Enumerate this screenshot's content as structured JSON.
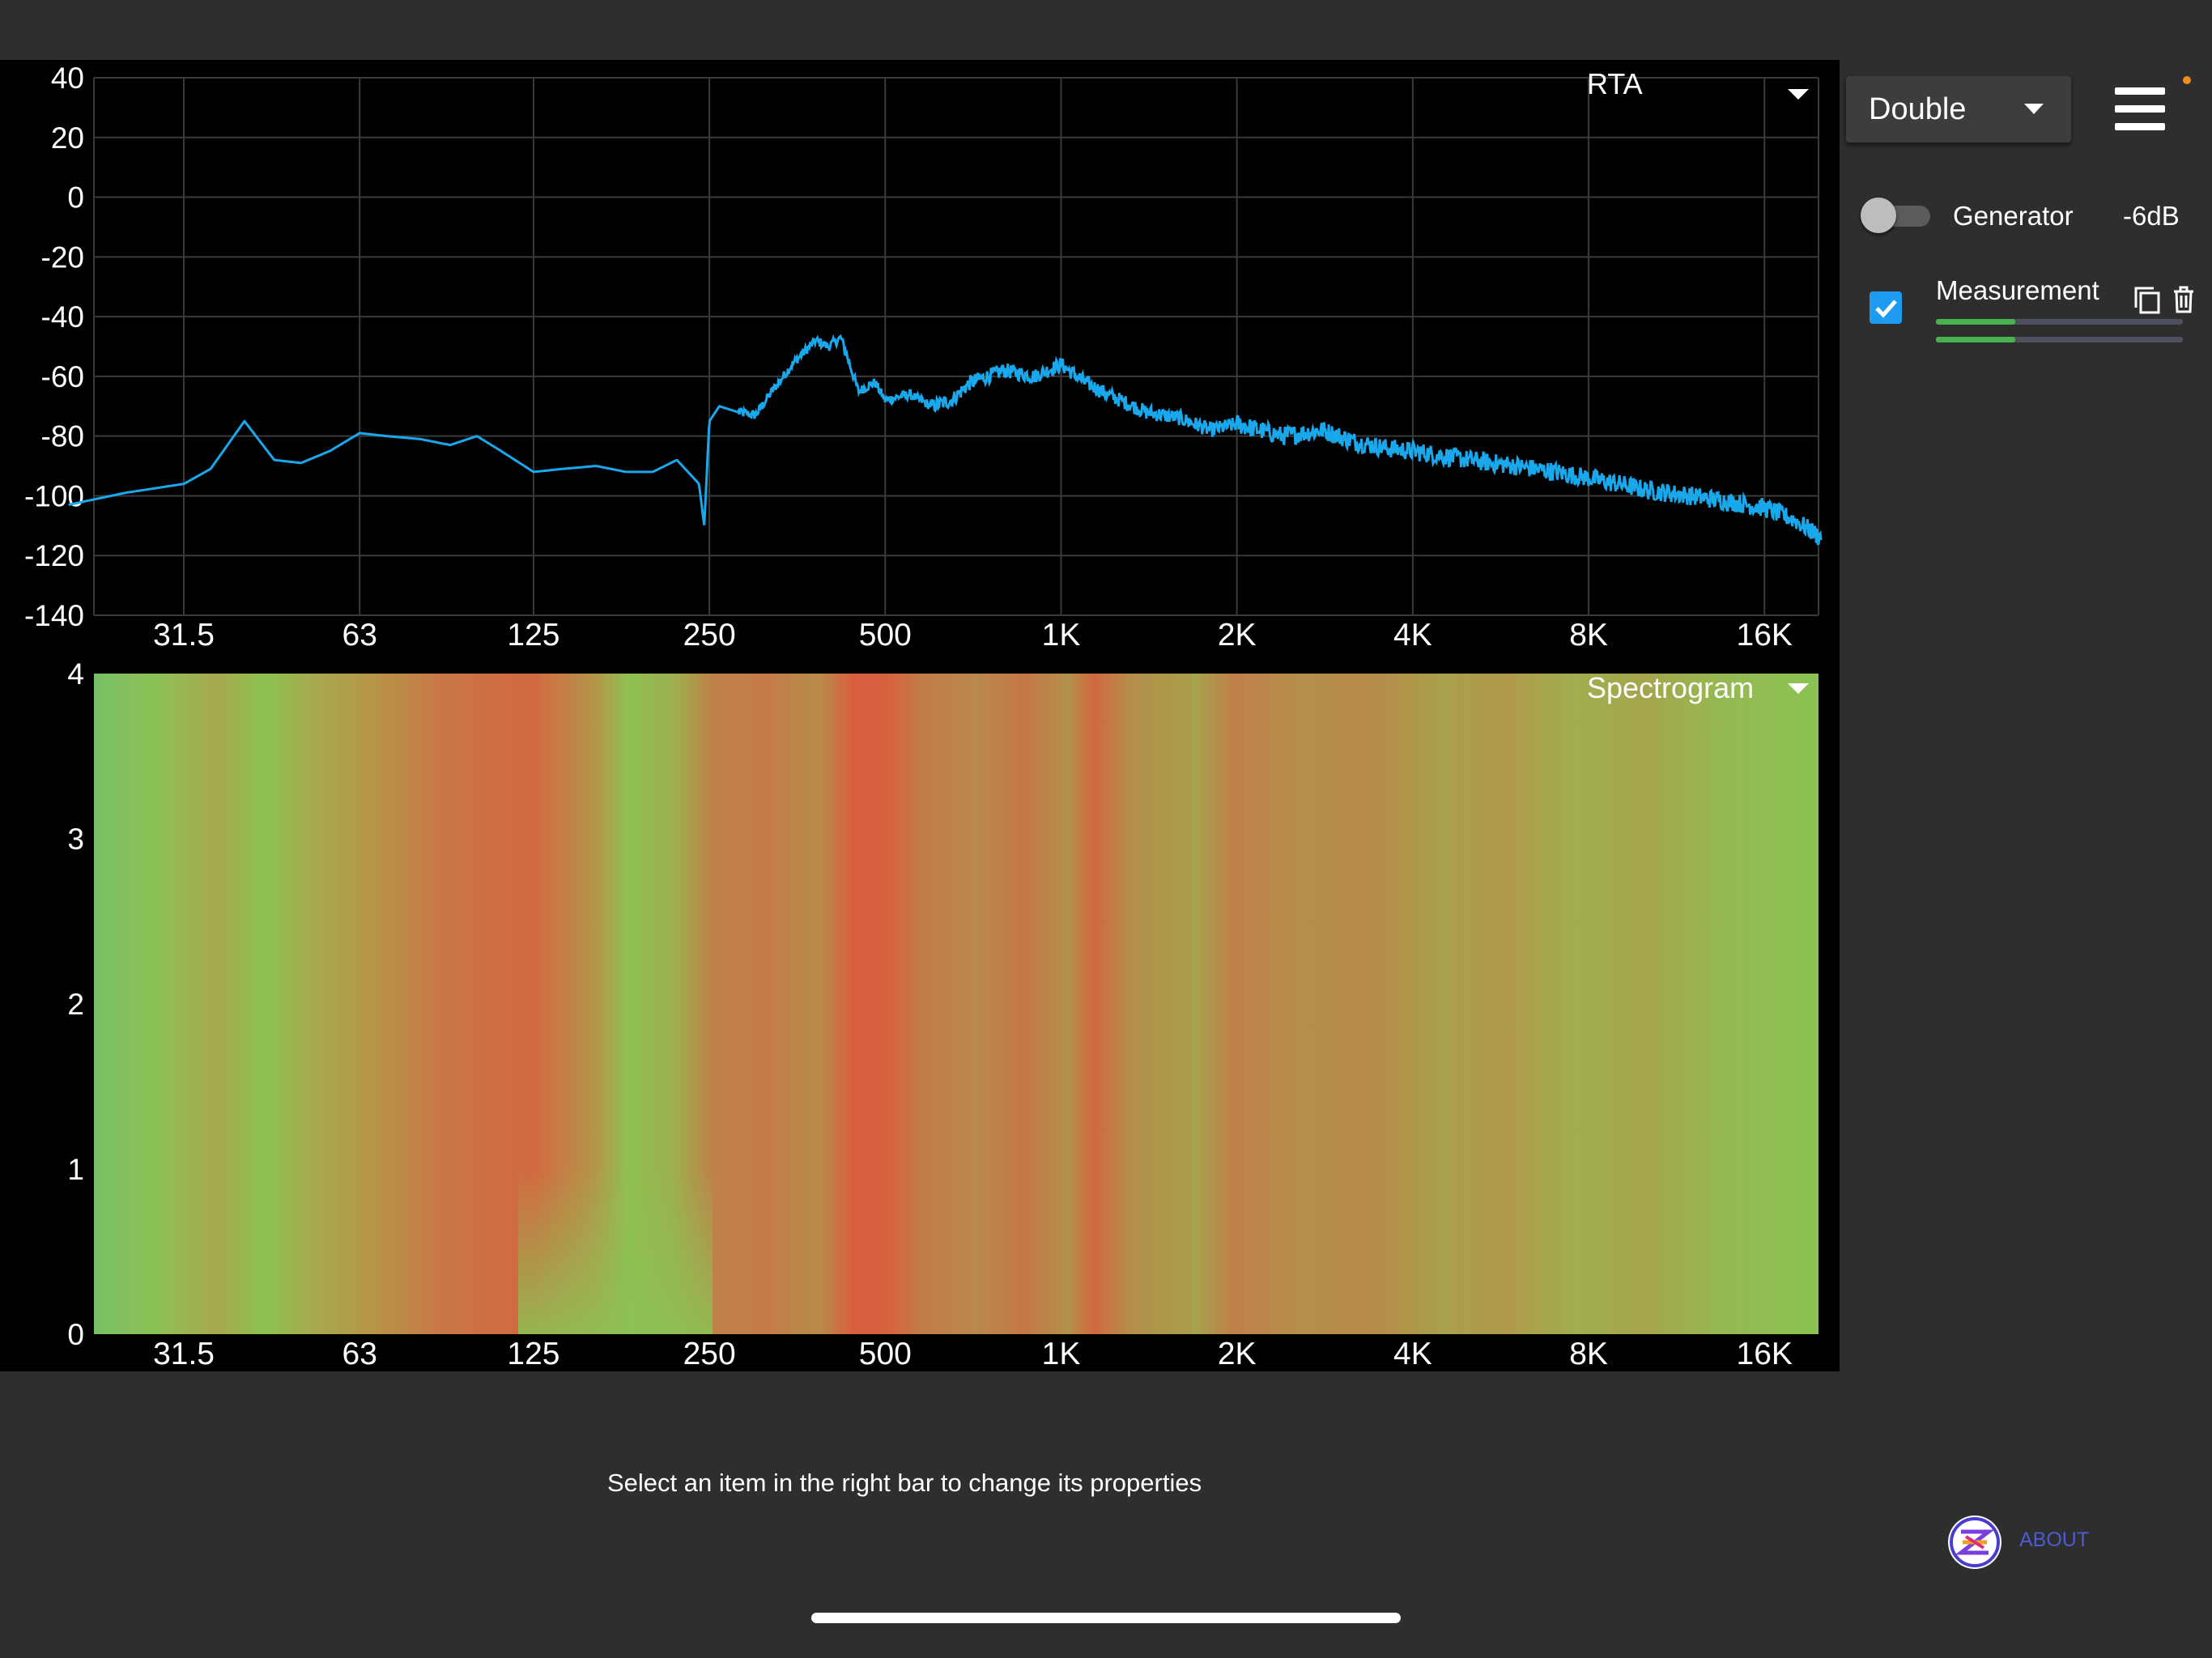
{
  "rta": {
    "mode_label": "RTA",
    "y_ticks": [
      "40",
      "20",
      "0",
      "-20",
      "-40",
      "-60",
      "-80",
      "-100",
      "-120",
      "-140"
    ],
    "x_ticks": [
      "31.5",
      "63",
      "125",
      "250",
      "500",
      "1K",
      "2K",
      "4K",
      "8K",
      "16K"
    ]
  },
  "spectrogram": {
    "mode_label": "Spectrogram",
    "y_ticks": [
      "4",
      "3",
      "2",
      "1",
      "0"
    ],
    "x_ticks": [
      "31.5",
      "63",
      "125",
      "250",
      "500",
      "1K",
      "2K",
      "4K",
      "8K",
      "16K"
    ]
  },
  "sidebar": {
    "view_mode": "Double",
    "generator": {
      "label": "Generator",
      "level": "-6dB",
      "enabled": false
    },
    "measurement": {
      "label": "Measurement",
      "checked": true,
      "level_fractions": [
        0.32,
        0.32
      ]
    }
  },
  "footer": {
    "hint": "Select an item in the right bar to change its properties",
    "about": "ABOUT"
  },
  "colors": {
    "trace": "#1aa8ec",
    "accent": "#1e9bf0",
    "level": "#48b24f",
    "about": "#4a5cd0"
  },
  "chart_data": [
    {
      "type": "line",
      "title": "",
      "xlabel": "",
      "ylabel": "",
      "x_scale": "log",
      "xlim": [
        20,
        20000
      ],
      "ylim": [
        -140,
        40
      ],
      "grid": true,
      "x": [
        20,
        25,
        31.5,
        35,
        40,
        45,
        50,
        56,
        63,
        70,
        80,
        90,
        100,
        110,
        125,
        140,
        160,
        180,
        200,
        220,
        240,
        245,
        250,
        260,
        280,
        300,
        320,
        350,
        380,
        400,
        420,
        450,
        480,
        500,
        550,
        600,
        650,
        700,
        800,
        900,
        1000,
        1100,
        1200,
        1400,
        1600,
        1800,
        2000,
        2400,
        2800,
        3200,
        3600,
        4000,
        5000,
        6000,
        7000,
        8000,
        9000,
        10000,
        12000,
        14000,
        16000,
        18000,
        20000
      ],
      "series": [
        {
          "values": [
            -103,
            -99,
            -96,
            -91,
            -75,
            -88,
            -89,
            -85,
            -79,
            -80,
            -81,
            -83,
            -80,
            -85,
            -92,
            -91,
            -90,
            -92,
            -92,
            -88,
            -96,
            -110,
            -75,
            -70,
            -72,
            -73,
            -65,
            -55,
            -48,
            -50,
            -47,
            -65,
            -62,
            -68,
            -66,
            -70,
            -68,
            -62,
            -58,
            -60,
            -56,
            -62,
            -66,
            -72,
            -74,
            -78,
            -76,
            -80,
            -78,
            -82,
            -84,
            -85,
            -88,
            -90,
            -92,
            -94,
            -96,
            -98,
            -100,
            -102,
            -104,
            -108,
            -114
          ]
        }
      ]
    },
    {
      "type": "heatmap",
      "title": "",
      "x_scale": "log",
      "xlim": [
        20,
        20000
      ],
      "ylim": [
        0,
        4
      ],
      "grid": false
    }
  ]
}
